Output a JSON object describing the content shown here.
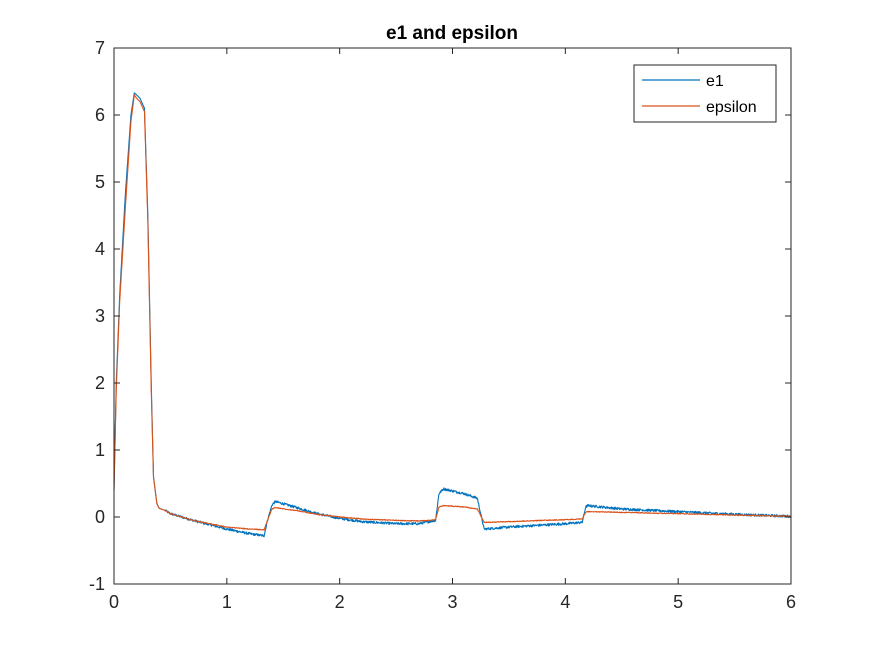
{
  "chart_data": {
    "type": "line",
    "title": "e1 and epsilon",
    "xlabel": "",
    "ylabel": "",
    "xlim": [
      0,
      6
    ],
    "ylim": [
      -1,
      7
    ],
    "xticks": [
      "0",
      "1",
      "2",
      "3",
      "4",
      "5",
      "6"
    ],
    "yticks": [
      "-1",
      "0",
      "1",
      "2",
      "3",
      "4",
      "5",
      "6",
      "7"
    ],
    "grid": false,
    "legend_position": "top-right",
    "series": [
      {
        "name": "e1",
        "color": "#0072BD",
        "x": [
          0,
          0.02,
          0.05,
          0.1,
          0.15,
          0.18,
          0.2,
          0.23,
          0.27,
          0.3,
          0.33,
          0.35,
          0.38,
          0.4,
          0.45,
          0.5,
          0.7,
          1.0,
          1.2,
          1.33,
          1.36,
          1.4,
          1.43,
          1.6,
          1.8,
          2.0,
          2.2,
          2.5,
          2.7,
          2.85,
          2.88,
          2.92,
          3.1,
          3.22,
          3.28,
          3.5,
          3.8,
          4.0,
          4.15,
          4.18,
          4.2,
          4.5,
          5.0,
          5.5,
          6.0
        ],
        "y": [
          0.4,
          2.0,
          3.3,
          4.8,
          6.0,
          6.33,
          6.3,
          6.25,
          6.1,
          4.5,
          2.0,
          0.6,
          0.2,
          0.13,
          0.1,
          0.05,
          -0.05,
          -0.18,
          -0.25,
          -0.28,
          -0.05,
          0.18,
          0.23,
          0.15,
          0.05,
          -0.02,
          -0.07,
          -0.1,
          -0.1,
          -0.05,
          0.35,
          0.42,
          0.35,
          0.28,
          -0.18,
          -0.15,
          -0.12,
          -0.1,
          -0.08,
          0.15,
          0.17,
          0.12,
          0.08,
          0.04,
          0.01
        ]
      },
      {
        "name": "epsilon",
        "color": "#D95319",
        "x": [
          0,
          0.02,
          0.05,
          0.1,
          0.15,
          0.18,
          0.2,
          0.23,
          0.27,
          0.3,
          0.33,
          0.35,
          0.38,
          0.4,
          0.45,
          0.5,
          0.7,
          1.0,
          1.2,
          1.33,
          1.36,
          1.4,
          1.43,
          1.6,
          1.8,
          2.0,
          2.2,
          2.5,
          2.7,
          2.85,
          2.88,
          2.92,
          3.1,
          3.22,
          3.28,
          3.5,
          3.8,
          4.0,
          4.15,
          4.18,
          4.2,
          4.5,
          5.0,
          5.5,
          6.0
        ],
        "y": [
          0.4,
          1.9,
          3.2,
          4.6,
          5.9,
          6.3,
          6.25,
          6.2,
          6.05,
          4.4,
          1.9,
          0.6,
          0.2,
          0.13,
          0.1,
          0.05,
          -0.05,
          -0.15,
          -0.18,
          -0.19,
          -0.05,
          0.12,
          0.14,
          0.1,
          0.04,
          0.0,
          -0.03,
          -0.05,
          -0.06,
          -0.04,
          0.15,
          0.17,
          0.15,
          0.12,
          -0.08,
          -0.07,
          -0.05,
          -0.04,
          -0.03,
          0.07,
          0.08,
          0.07,
          0.05,
          0.03,
          0.01
        ]
      }
    ]
  }
}
